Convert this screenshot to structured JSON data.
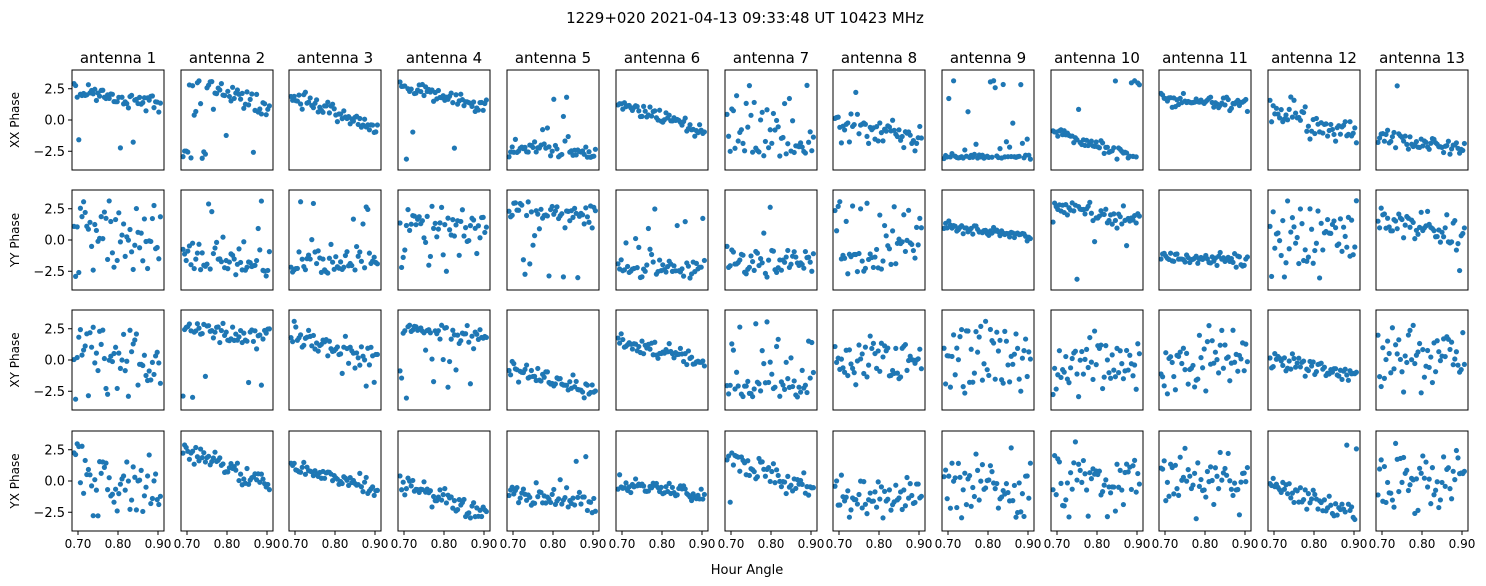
{
  "figure": {
    "suptitle": "1229+020  2021-04-13 09:33:48 UT  10423 MHz",
    "xlabel": "Hour Angle"
  },
  "chart_data": {
    "type": "scatter",
    "title": "1229+020  2021-04-13 09:33:48 UT  10423 MHz",
    "xlabel": "Hour Angle",
    "xlim": [
      0.685,
      0.915
    ],
    "ylim": [
      -4.0,
      4.0
    ],
    "xticks": [
      "0.70",
      "0.80",
      "0.90"
    ],
    "yticks": [
      "2.5",
      "0.0",
      "−2.5"
    ],
    "marker_color": "#1f77b4",
    "antennas": [
      "antenna 1",
      "antenna 2",
      "antenna 3",
      "antenna 4",
      "antenna 5",
      "antenna 6",
      "antenna 7",
      "antenna 8",
      "antenna 9",
      "antenna 10",
      "antenna 11",
      "antenna 12",
      "antenna 13"
    ],
    "rows": [
      "XX Phase",
      "YY Phase",
      "XY Phase",
      "YX Phase"
    ],
    "x": [
      0.69,
      0.694,
      0.698,
      0.702,
      0.706,
      0.71,
      0.714,
      0.718,
      0.722,
      0.726,
      0.73,
      0.734,
      0.738,
      0.742,
      0.746,
      0.75,
      0.754,
      0.758,
      0.762,
      0.766,
      0.77,
      0.774,
      0.778,
      0.782,
      0.786,
      0.79,
      0.794,
      0.798,
      0.802,
      0.806,
      0.81,
      0.814,
      0.818,
      0.822,
      0.826,
      0.83,
      0.834,
      0.838,
      0.842,
      0.846,
      0.85,
      0.854,
      0.858,
      0.862,
      0.866,
      0.87,
      0.874,
      0.878,
      0.882,
      0.886,
      0.89,
      0.894,
      0.898,
      0.902,
      0.906
    ],
    "panel_models": {
      "1": [
        [
          1.8,
          -6,
          0.4,
          0.12
        ],
        [
          1.2,
          -11,
          1.7,
          0.08
        ],
        [
          1.0,
          -12,
          1.8,
          0.1
        ],
        [
          0.3,
          -14,
          1.8,
          0.22
        ]
      ],
      "2": [
        [
          2.3,
          -14,
          0.45,
          0.1
        ],
        [
          -1.6,
          -6,
          0.9,
          0.1
        ],
        [
          2.2,
          -4,
          0.5,
          0.1
        ],
        [
          1.1,
          -12,
          0.5,
          0.05
        ]
      ],
      "3": [
        [
          0.6,
          -12,
          0.4,
          0
        ],
        [
          -1.9,
          0,
          0.7,
          0.22
        ],
        [
          1.1,
          -10,
          0.6,
          0.08
        ],
        [
          0.3,
          -8,
          0.4,
          0
        ]
      ],
      "4": [
        [
          1.8,
          -8,
          0.4,
          0.05
        ],
        [
          1.4,
          -6,
          0.7,
          0.3
        ],
        [
          2.3,
          -6,
          0.4,
          0.3
        ],
        [
          -1.5,
          -10,
          0.5,
          0
        ]
      ],
      "5": [
        [
          -2.4,
          -2,
          0.3,
          0.28
        ],
        [
          2.3,
          0,
          0.5,
          0.3
        ],
        [
          -1.6,
          -8,
          0.4,
          0.02
        ],
        [
          -1.3,
          -4,
          0.5,
          0.1
        ]
      ],
      "6": [
        [
          0.2,
          -10,
          0.3,
          0
        ],
        [
          -2.3,
          0,
          0.4,
          0.28
        ],
        [
          0.6,
          -8,
          0.4,
          0
        ],
        [
          -0.6,
          -5,
          0.5,
          0
        ]
      ],
      "7": [
        [
          -2.2,
          0,
          0.5,
          0.45
        ],
        [
          -1.7,
          0,
          0.6,
          0.15
        ],
        [
          -2.1,
          0,
          0.6,
          0.3
        ],
        [
          0.5,
          -12,
          0.6,
          0.05
        ]
      ],
      "8": [
        [
          -0.8,
          -8,
          0.7,
          0.08
        ],
        [
          -1.0,
          10,
          1.0,
          0.35
        ],
        [
          0.0,
          0,
          1.0,
          0
        ],
        [
          -1.2,
          0,
          1.0,
          0
        ]
      ],
      "9": [
        [
          -3.0,
          0,
          0.15,
          0.35
        ],
        [
          0.7,
          -4,
          0.25,
          0
        ],
        [
          0.0,
          0,
          2.0,
          0
        ],
        [
          0.0,
          0,
          2.0,
          0
        ]
      ],
      "10": [
        [
          -2.1,
          -10,
          0.3,
          0.02
        ],
        [
          2.1,
          -6,
          0.5,
          0.12
        ],
        [
          -0.5,
          0,
          1.3,
          0
        ],
        [
          0.0,
          0,
          1.6,
          0
        ]
      ],
      "11": [
        [
          1.4,
          -2,
          0.35,
          0
        ],
        [
          -1.5,
          -1,
          0.3,
          0
        ],
        [
          0.0,
          0,
          1.5,
          0
        ],
        [
          0.2,
          0,
          1.5,
          0
        ]
      ],
      "12": [
        [
          -0.2,
          -10,
          0.8,
          0
        ],
        [
          0.0,
          0,
          2.0,
          0
        ],
        [
          -0.6,
          -6,
          0.4,
          0
        ],
        [
          -1.5,
          -12,
          0.5,
          0
        ]
      ],
      "13": [
        [
          -1.8,
          -5,
          0.4,
          0.05
        ],
        [
          0.9,
          -6,
          0.9,
          0.05
        ],
        [
          0.0,
          0,
          1.6,
          0
        ],
        [
          0.0,
          0,
          1.7,
          0
        ]
      ]
    }
  }
}
